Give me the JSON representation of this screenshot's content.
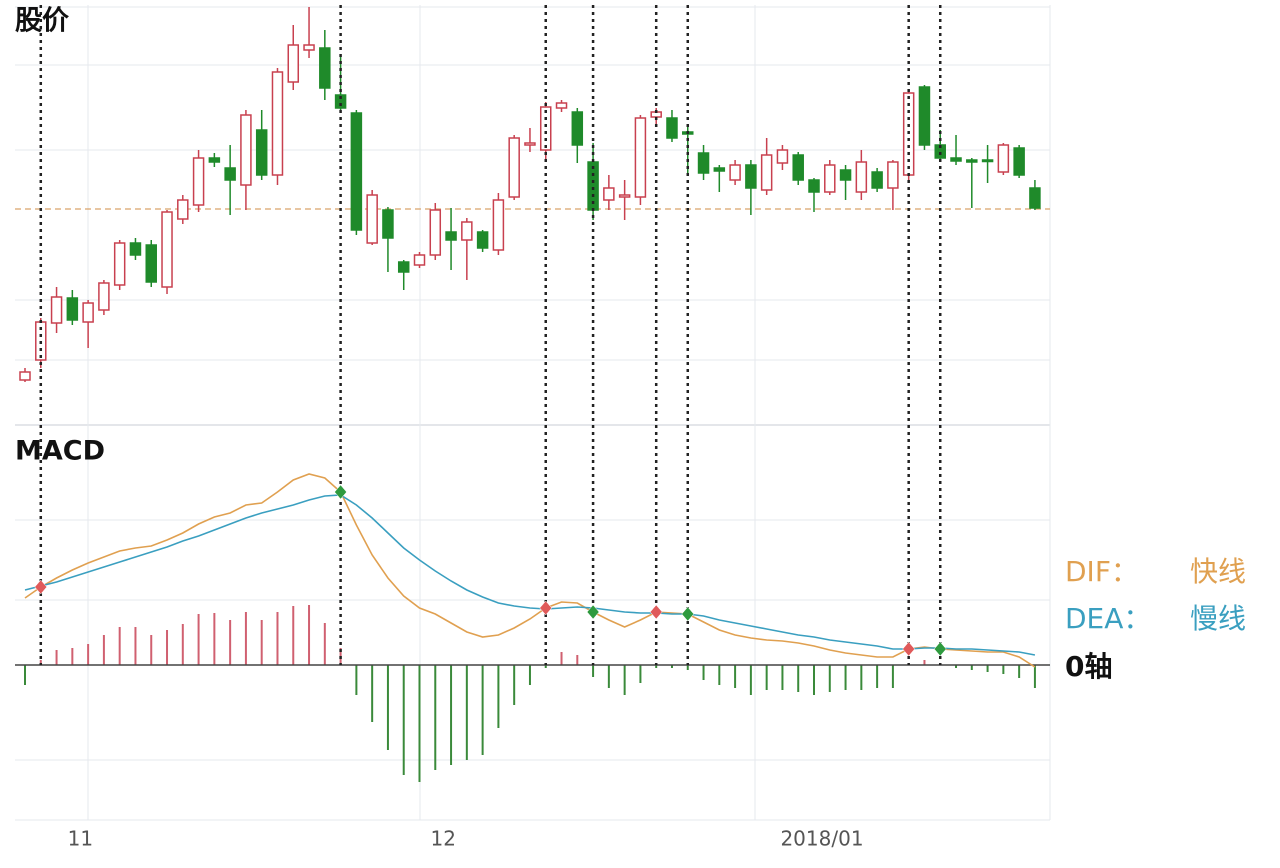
{
  "chart_data": [
    {
      "type": "candlestick",
      "title": "股价",
      "categories": [
        null,
        null,
        null,
        "11",
        null,
        null,
        null,
        null,
        null,
        null,
        null,
        null,
        null,
        null,
        null,
        null,
        null,
        null,
        null,
        null,
        null,
        null,
        null,
        null,
        null,
        null,
        "12",
        null,
        null,
        null,
        null,
        null,
        null,
        null,
        null,
        null,
        null,
        null,
        null,
        null,
        null,
        null,
        null,
        null,
        null,
        null,
        null,
        null,
        null,
        null,
        "2018/01",
        null,
        null,
        null,
        null,
        null,
        null,
        null,
        null,
        null,
        null,
        null,
        null,
        null,
        null
      ],
      "open": [
        5.0,
        7.0,
        10.7,
        13.2,
        10.8,
        12.0,
        14.5,
        18.7,
        18.5,
        14.3,
        21.1,
        22.5,
        27.2,
        26.2,
        24.5,
        30.0,
        25.5,
        34.8,
        38.0,
        38.2,
        33.5,
        31.7,
        18.7,
        22.0,
        16.8,
        16.5,
        17.5,
        19.8,
        19.0,
        19.8,
        18.0,
        23.3,
        28.5,
        28.0,
        32.2,
        31.8,
        26.8,
        23.0,
        23.3,
        23.3,
        31.3,
        31.2,
        29.8,
        27.7,
        26.2,
        25.0,
        26.5,
        24.0,
        26.7,
        27.5,
        25.0,
        23.8,
        26.0,
        23.8,
        25.8,
        24.2,
        25.5,
        34.3,
        28.5,
        27.2,
        27.0,
        27.0,
        25.8,
        28.2,
        24.2
      ],
      "high": [
        6.2,
        11.2,
        14.3,
        14.0,
        13.0,
        15.0,
        19.0,
        19.2,
        19.0,
        22.0,
        23.5,
        28.0,
        27.7,
        28.5,
        32.0,
        32.0,
        36.2,
        40.5,
        42.3,
        40.0,
        37.5,
        32.0,
        24.0,
        22.3,
        17.0,
        17.8,
        22.7,
        22.2,
        21.2,
        20.0,
        23.7,
        29.5,
        30.2,
        32.8,
        33.0,
        32.2,
        28.7,
        25.5,
        25.0,
        31.5,
        32.2,
        32.0,
        30.5,
        28.5,
        26.5,
        27.0,
        27.0,
        29.2,
        28.5,
        27.8,
        25.2,
        27.0,
        26.5,
        28.0,
        26.2,
        27.0,
        34.0,
        34.5,
        30.0,
        29.5,
        27.2,
        28.5,
        28.7,
        28.5,
        25.0
      ],
      "low": [
        4.8,
        6.2,
        9.7,
        10.5,
        8.2,
        11.5,
        14.0,
        17.0,
        14.3,
        13.6,
        20.6,
        21.8,
        26.3,
        21.5,
        22.0,
        25.0,
        24.5,
        34.0,
        37.2,
        33.0,
        31.8,
        19.5,
        18.5,
        15.8,
        14.0,
        16.2,
        17.0,
        16.0,
        15.0,
        17.8,
        17.5,
        23.0,
        27.8,
        27.0,
        31.8,
        26.7,
        21.0,
        22.0,
        21.0,
        22.5,
        30.5,
        28.8,
        25.5,
        25.0,
        23.8,
        24.5,
        21.5,
        23.5,
        26.0,
        24.5,
        21.8,
        23.5,
        23.0,
        23.0,
        23.8,
        22.0,
        25.0,
        28.0,
        26.8,
        26.5,
        22.2,
        24.7,
        25.5,
        25.2,
        22.0
      ],
      "close": [
        5.8,
        10.8,
        13.3,
        11.0,
        12.7,
        14.7,
        18.7,
        17.5,
        14.8,
        21.8,
        23.0,
        27.2,
        26.8,
        25.0,
        31.5,
        25.5,
        35.8,
        38.5,
        38.5,
        34.2,
        32.2,
        20.0,
        23.5,
        19.2,
        15.8,
        17.5,
        22.0,
        19.0,
        20.8,
        18.2,
        23.0,
        29.2,
        28.7,
        32.3,
        32.7,
        28.5,
        22.0,
        24.2,
        23.5,
        31.2,
        31.8,
        29.2,
        29.6,
        25.7,
        25.9,
        26.5,
        24.2,
        27.5,
        28.0,
        25.0,
        23.8,
        26.5,
        25.0,
        26.8,
        24.2,
        26.8,
        33.7,
        28.5,
        27.2,
        26.9,
        26.8,
        26.9,
        28.5,
        25.5,
        22.2
      ],
      "up_color": "#c8404f",
      "down_color": "#1f8a2a",
      "ylim": [
        0.5,
        42.5
      ],
      "ref_line": 22.1,
      "ref_color": "#d9a36a"
    },
    {
      "type": "macd",
      "title": "MACD",
      "series": [
        {
          "name": "DIF：",
          "meaning": "快线",
          "color": "#e0a050",
          "values": [
            6.7,
            7.8,
            8.7,
            9.5,
            10.2,
            10.8,
            11.4,
            11.7,
            11.9,
            12.5,
            13.2,
            14.1,
            14.8,
            15.2,
            16.0,
            16.2,
            17.3,
            18.5,
            19.1,
            18.7,
            17.3,
            14.0,
            11.0,
            8.7,
            6.9,
            5.7,
            5.1,
            4.2,
            3.3,
            2.8,
            3.0,
            3.7,
            4.6,
            5.7,
            6.3,
            6.2,
            5.3,
            4.5,
            3.8,
            4.5,
            5.3,
            5.2,
            5.1,
            4.3,
            3.5,
            3.0,
            2.7,
            2.5,
            2.4,
            2.2,
            1.9,
            1.5,
            1.2,
            1.0,
            0.8,
            0.8,
            1.6,
            1.8,
            1.6,
            1.5,
            1.4,
            1.3,
            1.3,
            0.8,
            -0.2
          ]
        },
        {
          "name": "DEA：",
          "meaning": "慢线",
          "color": "#3a9fc0",
          "values": [
            7.5,
            7.9,
            8.3,
            8.8,
            9.3,
            9.8,
            10.3,
            10.8,
            11.3,
            11.8,
            12.4,
            12.9,
            13.5,
            14.1,
            14.7,
            15.2,
            15.6,
            16.0,
            16.5,
            16.9,
            17.0,
            16.0,
            14.7,
            13.2,
            11.7,
            10.5,
            9.4,
            8.4,
            7.5,
            6.8,
            6.2,
            5.9,
            5.7,
            5.6,
            5.7,
            5.8,
            5.7,
            5.5,
            5.3,
            5.2,
            5.2,
            5.1,
            5.1,
            4.9,
            4.5,
            4.2,
            3.9,
            3.6,
            3.3,
            3.0,
            2.8,
            2.5,
            2.3,
            2.1,
            1.9,
            1.6,
            1.6,
            1.7,
            1.7,
            1.6,
            1.6,
            1.5,
            1.4,
            1.3,
            1.0
          ]
        }
      ],
      "bars": [
        -2.0,
        0.5,
        1.5,
        1.7,
        2.1,
        3.0,
        3.8,
        3.8,
        3.0,
        3.5,
        4.1,
        5.1,
        5.2,
        4.5,
        5.3,
        4.5,
        5.3,
        5.9,
        6.0,
        4.2,
        1.7,
        -3.0,
        -5.7,
        -8.5,
        -11.0,
        -11.7,
        -10.5,
        -10.0,
        -9.5,
        -9.0,
        -6.3,
        -4.0,
        -2.0,
        -0.3,
        1.3,
        1.0,
        -1.2,
        -2.3,
        -3.0,
        -1.8,
        -0.3,
        -0.3,
        -0.5,
        -1.5,
        -2.0,
        -2.3,
        -3.0,
        -2.5,
        -2.5,
        -2.7,
        -3.0,
        -2.7,
        -2.5,
        -2.5,
        -2.3,
        -2.3,
        0,
        0.5,
        0,
        -0.3,
        -0.5,
        -0.7,
        -0.9,
        -1.3,
        -2.3
      ],
      "bar_up_color": "#d06070",
      "bar_down_color": "#3a8a3a",
      "ylim": [
        -17.5,
        23.5
      ],
      "zero_label": "0轴",
      "crosses": [
        {
          "index": 1,
          "color": "#e05a5a"
        },
        {
          "index": 20,
          "color": "#2e9a3e"
        },
        {
          "index": 33,
          "color": "#e05a5a"
        },
        {
          "index": 36,
          "color": "#2e9a3e"
        },
        {
          "index": 40,
          "color": "#e05a5a"
        },
        {
          "index": 42,
          "color": "#2e9a3e"
        },
        {
          "index": 56,
          "color": "#e05a5a"
        },
        {
          "index": 58,
          "color": "#2e9a3e"
        }
      ]
    }
  ]
}
